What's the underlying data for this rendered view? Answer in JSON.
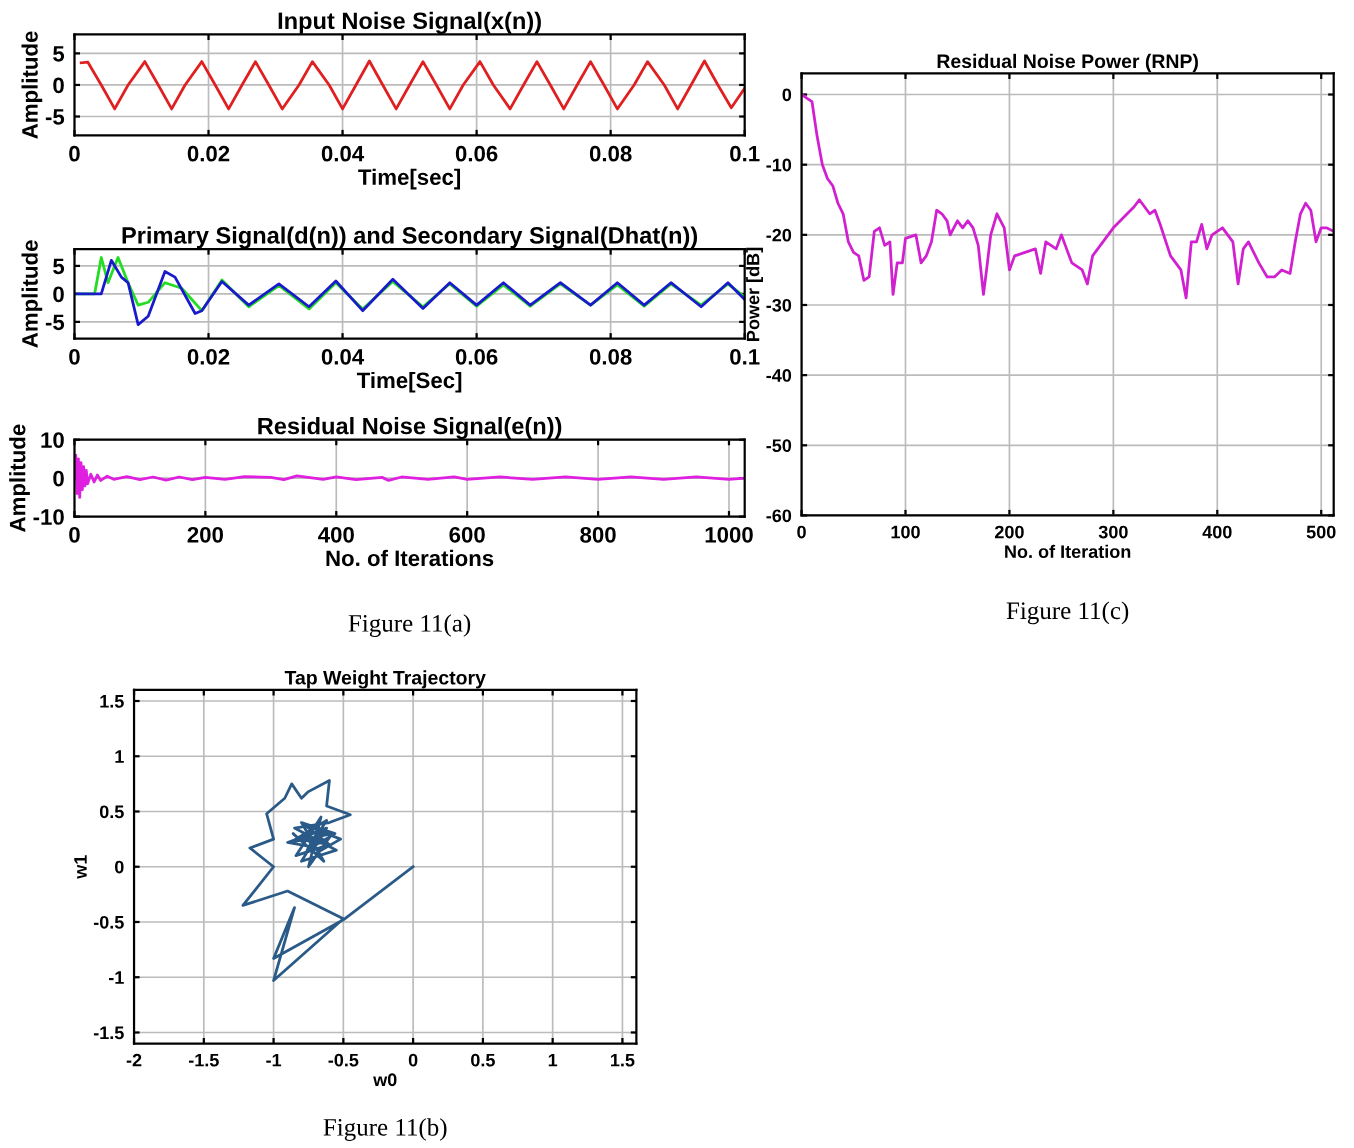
{
  "chart_data": [
    {
      "type": "line",
      "title": "Input Noise Signal(x(n))",
      "xlabel": "Time[sec]",
      "ylabel": "Amplitude",
      "xlim": [
        0,
        0.1
      ],
      "ylim": [
        -8,
        8
      ],
      "xticks": [
        0,
        0.02,
        0.04,
        0.06,
        0.08,
        0.1
      ],
      "yticks": [
        -5,
        0,
        5
      ],
      "grid": true,
      "series": [
        {
          "color": "#e02020",
          "x": [
            0.001,
            0.002,
            0.004,
            0.006,
            0.008,
            0.0105,
            0.0125,
            0.0145,
            0.0165,
            0.019,
            0.021,
            0.023,
            0.025,
            0.027,
            0.029,
            0.031,
            0.0335,
            0.0355,
            0.038,
            0.04,
            0.042,
            0.044,
            0.046,
            0.048,
            0.05,
            0.052,
            0.054,
            0.056,
            0.058,
            0.0605,
            0.0625,
            0.065,
            0.067,
            0.069,
            0.071,
            0.073,
            0.075,
            0.077,
            0.079,
            0.081,
            0.0835,
            0.0855,
            0.088,
            0.09,
            0.092,
            0.094,
            0.096,
            0.098,
            0.1
          ],
          "values": [
            3.5,
            3.6,
            0,
            -3.8,
            0,
            3.7,
            0,
            -3.8,
            0,
            3.7,
            0,
            -3.8,
            0,
            3.7,
            0,
            -3.8,
            0,
            3.7,
            0,
            -3.8,
            0,
            3.8,
            0,
            -3.8,
            0,
            3.7,
            0,
            -3.8,
            0,
            3.7,
            0,
            -3.8,
            0,
            3.7,
            0,
            -3.8,
            0,
            3.7,
            0,
            -3.8,
            0,
            3.7,
            0,
            -3.8,
            0,
            3.8,
            0,
            -3.6,
            -0.5
          ]
        }
      ]
    },
    {
      "type": "line",
      "title": "Primary Signal(d(n)) and Secondary Signal(Dhat(n))",
      "xlabel": "Time[Sec]",
      "ylabel": "Amplitude",
      "xlim": [
        0,
        0.1
      ],
      "ylim": [
        -8,
        8
      ],
      "xticks": [
        0,
        0.02,
        0.04,
        0.06,
        0.08,
        0.1
      ],
      "yticks": [
        -5,
        0,
        5
      ],
      "grid": true,
      "series": [
        {
          "color": "#22dd22",
          "x": [
            0,
            0.003,
            0.004,
            0.005,
            0.0065,
            0.008,
            0.0095,
            0.011,
            0.0135,
            0.016,
            0.019,
            0.022,
            0.026,
            0.0305,
            0.035,
            0.039,
            0.043,
            0.0475,
            0.052,
            0.056,
            0.06,
            0.064,
            0.068,
            0.0725,
            0.077,
            0.081,
            0.085,
            0.089,
            0.0935,
            0.0975,
            0.1
          ],
          "values": [
            0,
            0,
            6.5,
            2,
            6.5,
            2,
            -2,
            -1.5,
            2,
            1,
            -3,
            2.5,
            -2.3,
            1.5,
            -2.7,
            2,
            -2.7,
            2.2,
            -2.3,
            1.8,
            -2.2,
            1.6,
            -2.2,
            1.8,
            -2,
            1.6,
            -2.2,
            1.8,
            -2,
            1.8,
            -0.5
          ]
        },
        {
          "color": "#1a1acc",
          "x": [
            0,
            0.004,
            0.0055,
            0.007,
            0.008,
            0.0095,
            0.011,
            0.0135,
            0.015,
            0.018,
            0.019,
            0.022,
            0.026,
            0.0305,
            0.035,
            0.039,
            0.043,
            0.0475,
            0.052,
            0.056,
            0.06,
            0.064,
            0.068,
            0.0725,
            0.077,
            0.081,
            0.085,
            0.089,
            0.0935,
            0.0975,
            0.1
          ],
          "values": [
            0,
            0,
            6,
            3,
            2,
            -5.5,
            -4,
            4,
            3,
            -3.5,
            -3,
            2.2,
            -2,
            1.8,
            -2.3,
            2.3,
            -3,
            2.6,
            -2.6,
            2,
            -2,
            2,
            -2,
            2,
            -2,
            2,
            -2,
            2,
            -2.3,
            2,
            -1
          ]
        }
      ]
    },
    {
      "type": "line",
      "title": "Residual Noise Signal(e(n))",
      "xlabel": "No. of Iterations",
      "ylabel": "Amplitude",
      "xlim": [
        0,
        1024
      ],
      "ylim": [
        -10,
        10
      ],
      "xticks": [
        0,
        200,
        400,
        600,
        800,
        1000
      ],
      "yticks": [
        -10,
        0,
        10
      ],
      "grid": true,
      "annotations": [
        "Figure 11(a)"
      ],
      "series": [
        {
          "color": "#e020e0",
          "x": [
            0,
            2,
            4,
            6,
            8,
            10,
            12,
            14,
            16,
            18,
            20,
            25,
            30,
            35,
            40,
            50,
            60,
            80,
            100,
            120,
            140,
            160,
            180,
            200,
            230,
            260,
            300,
            320,
            340,
            380,
            400,
            430,
            470,
            480,
            500,
            540,
            580,
            600,
            650,
            700,
            750,
            800,
            850,
            900,
            950,
            1000,
            1024
          ],
          "values": [
            0,
            6,
            -4,
            5,
            -5,
            4,
            -3,
            3,
            -2,
            2,
            -1.5,
            1,
            -1,
            0.8,
            -0.6,
            0.5,
            -0.3,
            0.4,
            -0.4,
            0.3,
            -0.5,
            0.3,
            -0.4,
            0.2,
            -0.3,
            0.4,
            0.2,
            -0.4,
            0.6,
            -0.3,
            0.3,
            -0.4,
            0.2,
            -0.6,
            0.3,
            -0.3,
            0.3,
            -0.3,
            0.3,
            -0.3,
            0.3,
            -0.3,
            0.3,
            -0.3,
            0.3,
            -0.3,
            0
          ]
        }
      ]
    },
    {
      "type": "line",
      "title": "Residual Noise Power (RNP)",
      "xlabel": "No. of Iteration",
      "ylabel": "Power [dB]",
      "xlim": [
        0,
        512
      ],
      "ylim": [
        -60,
        3
      ],
      "xticks": [
        0,
        100,
        200,
        300,
        400,
        500
      ],
      "yticks": [
        -60,
        -50,
        -40,
        -30,
        -20,
        -10,
        0
      ],
      "grid": true,
      "annotations": [
        "Figure 11(c)"
      ],
      "series": [
        {
          "color": "#d020d0",
          "x": [
            0,
            5,
            10,
            15,
            20,
            25,
            30,
            35,
            40,
            45,
            50,
            55,
            60,
            65,
            70,
            75,
            80,
            85,
            88,
            92,
            97,
            100,
            110,
            115,
            120,
            125,
            130,
            135,
            140,
            143,
            150,
            155,
            160,
            165,
            170,
            175,
            178,
            182,
            188,
            195,
            200,
            205,
            215,
            225,
            230,
            235,
            245,
            250,
            255,
            260,
            270,
            275,
            280,
            290,
            300,
            310,
            320,
            325,
            330,
            335,
            340,
            345,
            355,
            365,
            370,
            375,
            380,
            385,
            390,
            395,
            405,
            415,
            420,
            425,
            430,
            440,
            448,
            455,
            462,
            470,
            475,
            480,
            485,
            490,
            495,
            500,
            505,
            512
          ],
          "values": [
            0,
            -0.5,
            -1,
            -6,
            -10,
            -12,
            -13,
            -15.5,
            -17,
            -21,
            -22.5,
            -23,
            -26.5,
            -26,
            -19.5,
            -19,
            -21.5,
            -21,
            -28.5,
            -24,
            -24,
            -20.5,
            -20,
            -24,
            -23,
            -21,
            -16.5,
            -17,
            -18,
            -20,
            -18,
            -19,
            -18,
            -19,
            -21.5,
            -28.5,
            -25,
            -20,
            -17,
            -19,
            -25,
            -23,
            -22.5,
            -22,
            -25.5,
            -21,
            -22,
            -20,
            -22,
            -24,
            -25,
            -27,
            -23,
            -21,
            -19,
            -17.5,
            -16,
            -15,
            -16,
            -17,
            -16.5,
            -18.5,
            -23,
            -25,
            -29,
            -21,
            -21,
            -18.5,
            -22,
            -20,
            -19,
            -21,
            -27,
            -22,
            -21,
            -24,
            -26,
            -26,
            -25,
            -25.5,
            -21,
            -17,
            -15.5,
            -16.5,
            -21,
            -19,
            -19,
            -19.5
          ]
        }
      ]
    },
    {
      "type": "line",
      "title": "Tap Weight Trajectory",
      "xlabel": "w0",
      "ylabel": "w1",
      "xlim": [
        -2,
        1.6
      ],
      "ylim": [
        -1.6,
        1.6
      ],
      "xticks": [
        -2,
        -1.5,
        -1,
        -0.5,
        0,
        0.5,
        1,
        1.5
      ],
      "yticks": [
        -1.5,
        -1,
        -0.5,
        0,
        0.5,
        1,
        1.5
      ],
      "grid": true,
      "annotations": [
        "Figure 11(b)"
      ],
      "series": [
        {
          "color": "#2a5a88",
          "x": [
            0,
            -0.5,
            -1.0,
            -0.85,
            -1.0,
            -0.5,
            -0.9,
            -1.22,
            -1.0,
            -1.17,
            -1.0,
            -1.05,
            -0.92,
            -0.87,
            -0.8,
            -0.75,
            -0.6,
            -0.62,
            -0.45,
            -0.6,
            -0.85,
            -0.55,
            -0.8,
            -0.62,
            -0.88,
            -0.58,
            -0.75,
            -0.66,
            -0.84,
            -0.6,
            -0.78,
            -0.52,
            -0.7,
            -0.86,
            -0.64,
            -0.8,
            -0.56,
            -0.72,
            -0.9,
            -0.62,
            -0.76,
            -0.68,
            -0.82,
            -0.6,
            -0.7,
            -0.74,
            -0.66,
            -0.71
          ],
          "values": [
            0,
            -0.48,
            -0.83,
            -0.37,
            -1.03,
            -0.47,
            -0.22,
            -0.35,
            0.0,
            0.17,
            0.25,
            0.48,
            0.62,
            0.75,
            0.62,
            0.68,
            0.78,
            0.55,
            0.47,
            0.4,
            0.35,
            0.15,
            0.05,
            0.42,
            0.22,
            0.3,
            0.0,
            0.45,
            0.1,
            0.2,
            0.38,
            0.25,
            0.12,
            0.3,
            0.05,
            0.4,
            0.3,
            0.18,
            0.22,
            0.35,
            0.15,
            0.32,
            0.25,
            0.2,
            0.28,
            0.22,
            0.3,
            0.25
          ]
        }
      ]
    }
  ]
}
